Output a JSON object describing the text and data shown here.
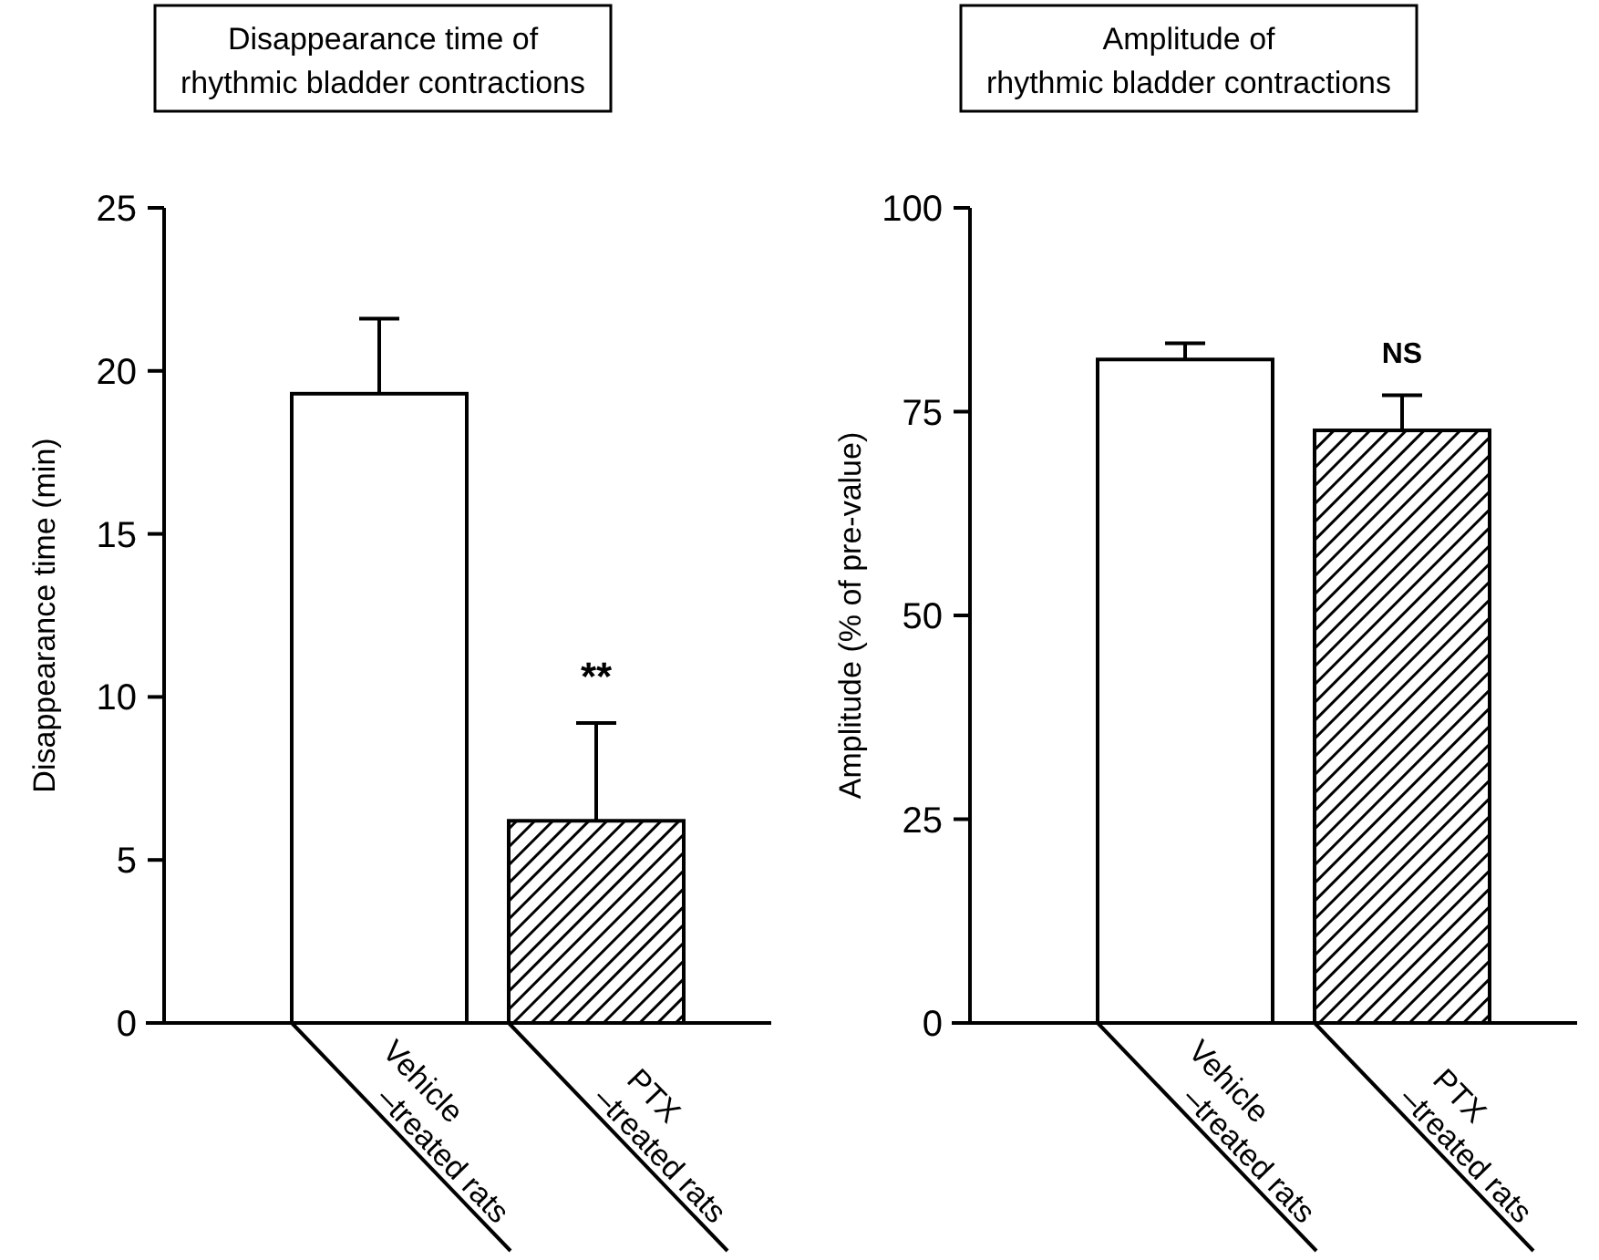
{
  "chart_data": [
    {
      "type": "bar",
      "title": "Disappearance time of\nrhythmic bladder contractions",
      "ylabel": "Disappearance time (min)",
      "categories": [
        "Vehicle\n–treated rats",
        "PTX\n–treated rats"
      ],
      "values": [
        19.3,
        6.2
      ],
      "colors": [
        "#ffffff",
        "#000000"
      ],
      "errors": [
        [
          19.3,
          21.6
        ],
        [
          6.2,
          9.2
        ]
      ],
      "ylim": [
        0,
        25
      ],
      "yticks": [
        0,
        5,
        10,
        15,
        20,
        25
      ],
      "grid": false,
      "annotations": [
        {
          "text": "**",
          "x": "PTX\n–treated rats",
          "y": 9.2
        }
      ]
    },
    {
      "type": "bar",
      "title": "Amplitude of\nrhythmic bladder contractions",
      "ylabel": "Amplitude (% of pre-value)",
      "categories": [
        "Vehicle\n–treated rats",
        "PTX\n–treated rats"
      ],
      "values": [
        81.4,
        72.7
      ],
      "colors": [
        "#ffffff",
        "#000000"
      ],
      "errors": [
        [
          81.4,
          83.4
        ],
        [
          72.7,
          77.0
        ]
      ],
      "ylim": [
        0,
        100
      ],
      "yticks": [
        0,
        25,
        50,
        75,
        100
      ],
      "grid": false,
      "annotations": [
        {
          "text": "NS",
          "x": "PTX\n–treated rats",
          "y": 77.0
        }
      ]
    }
  ]
}
